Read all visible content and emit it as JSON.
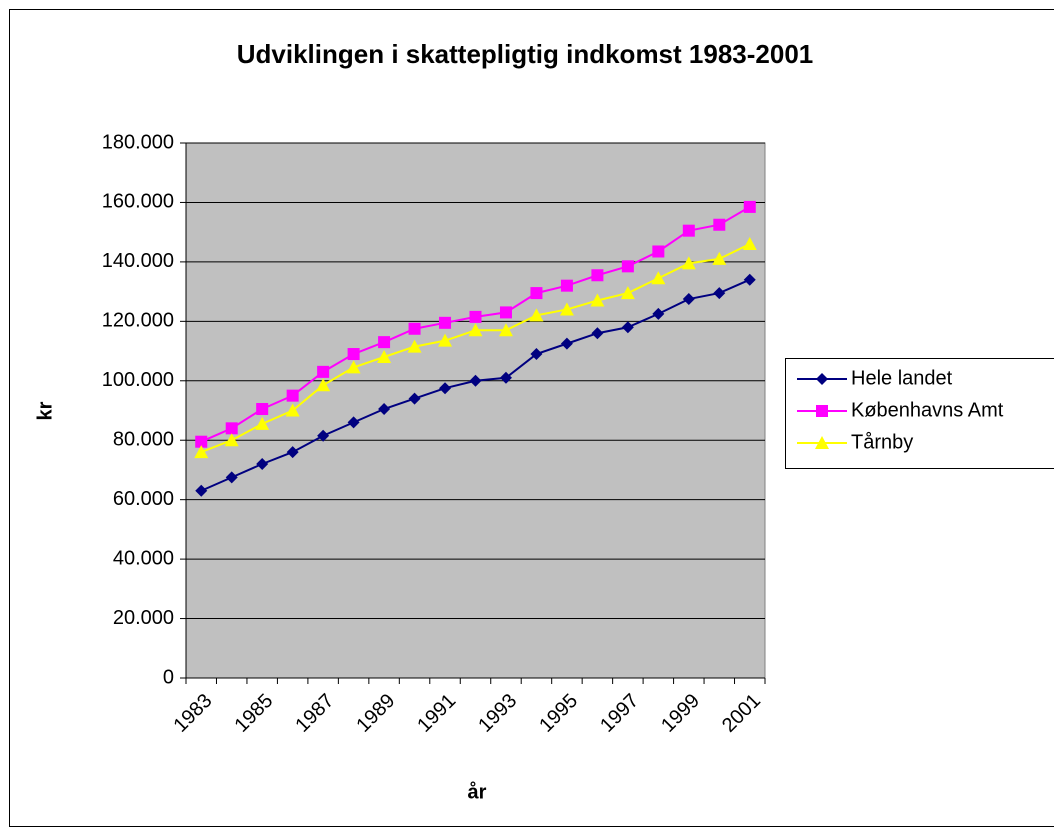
{
  "chart_data": {
    "type": "line",
    "title": "Udviklingen i skattepligtig indkomst 1983-2001",
    "x_label": "år",
    "y_label": "kr",
    "categories": [
      "1983",
      null,
      "1985",
      null,
      "1987",
      null,
      "1989",
      null,
      "1991",
      null,
      "1993",
      null,
      "1995",
      null,
      "1997",
      null,
      "1999",
      null,
      "2001"
    ],
    "series": [
      {
        "name": "Hele landet",
        "color": "#000080",
        "marker": "diamond",
        "values": [
          63000,
          67500,
          72000,
          76000,
          81500,
          86000,
          90500,
          94000,
          97500,
          100000,
          101000,
          109000,
          112500,
          116000,
          118000,
          122500,
          127500,
          129500,
          134000
        ]
      },
      {
        "name": "Københavns Amt",
        "color": "#ff00ff",
        "marker": "square",
        "values": [
          79500,
          84000,
          90500,
          95000,
          103000,
          109000,
          113000,
          117500,
          119500,
          121500,
          123000,
          129500,
          132000,
          135500,
          138500,
          143500,
          150500,
          152500,
          158500
        ]
      },
      {
        "name": "Tårnby",
        "color": "#ffff00",
        "marker": "triangle",
        "values": [
          76000,
          80000,
          85500,
          90000,
          98500,
          104500,
          108000,
          111500,
          113500,
          117000,
          117000,
          122000,
          124000,
          127000,
          129500,
          134500,
          139500,
          141000,
          146000
        ]
      }
    ],
    "ylim": [
      0,
      180000
    ],
    "yticks": [
      0,
      {
        "value": 20000,
        "label": "20.000"
      },
      {
        "value": 40000,
        "label": "40.000"
      },
      {
        "value": 60000,
        "label": "60.000"
      },
      {
        "value": 80000,
        "label": "80.000"
      },
      {
        "value": 100000,
        "label": "100.000"
      },
      {
        "value": 120000,
        "label": "120.000"
      },
      {
        "value": 140000,
        "label": "140.000"
      },
      {
        "value": 160000,
        "label": "160.000"
      },
      {
        "value": 180000,
        "label": "180.000"
      }
    ],
    "grid": true,
    "legend": "right",
    "plot_background": "#c0c0c0"
  }
}
